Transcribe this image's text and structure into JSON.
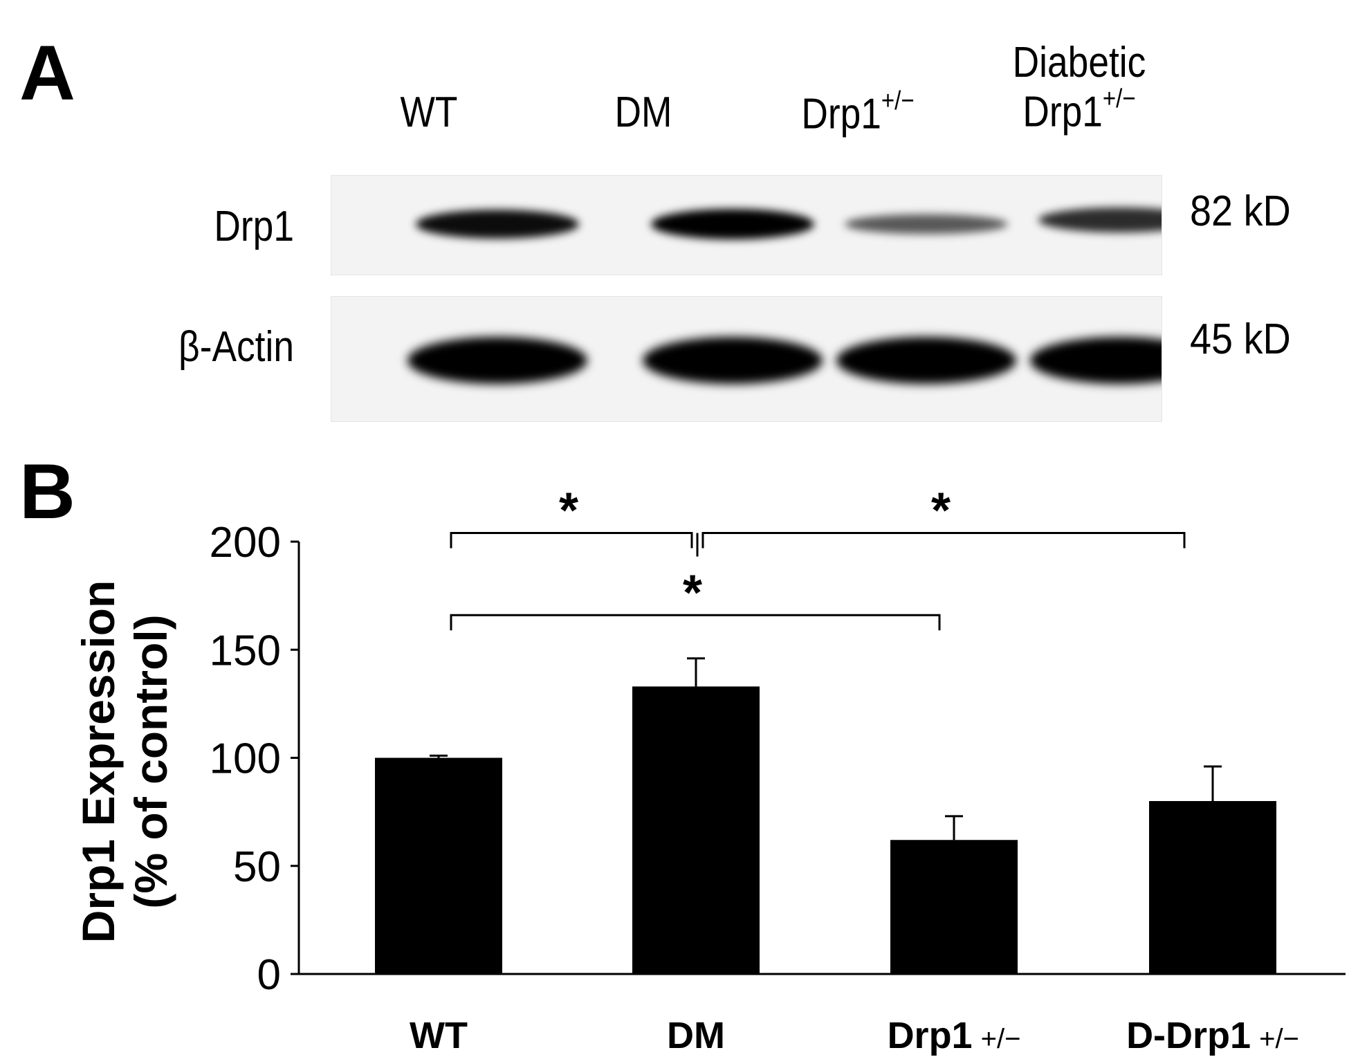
{
  "panel_a": {
    "label": "A",
    "lanes": [
      {
        "main": "WT",
        "sup": ""
      },
      {
        "main": "DM",
        "sup": ""
      },
      {
        "main": "Drp1",
        "sup": "+/−"
      },
      {
        "line1": "Diabetic",
        "main": "Drp1",
        "sup": "+/−"
      }
    ],
    "rows": [
      {
        "label": "Drp1",
        "size": "82 kD"
      },
      {
        "label": "β-Actin",
        "size": "45 kD"
      }
    ],
    "band_intensity": {
      "Drp1": [
        0.92,
        1.0,
        0.45,
        0.72
      ],
      "beta_actin": [
        1.0,
        1.0,
        1.0,
        1.0
      ]
    }
  },
  "panel_b": {
    "label": "B"
  },
  "chart_data": {
    "type": "bar",
    "ylabel_line1": "Drp1 Expression",
    "ylabel_line2": "(% of control)",
    "categories": [
      {
        "main": "WT",
        "suffix": ""
      },
      {
        "main": "DM",
        "suffix": ""
      },
      {
        "main": "Drp1",
        "suffix": "+/−"
      },
      {
        "main": "D-Drp1",
        "suffix": "+/−"
      }
    ],
    "values": [
      100,
      133,
      62,
      80
    ],
    "errors": [
      1,
      13,
      11,
      16
    ],
    "ylim": [
      0,
      200
    ],
    "yticks": [
      0,
      50,
      100,
      150,
      200
    ],
    "bar_color": "#000000",
    "significance": [
      {
        "from": 0,
        "to": 1,
        "y": 204,
        "label": "*"
      },
      {
        "from": 1,
        "to": 3,
        "y": 204,
        "label": "*"
      },
      {
        "from": 0,
        "to": 2,
        "y": 166,
        "label": "*"
      }
    ]
  }
}
